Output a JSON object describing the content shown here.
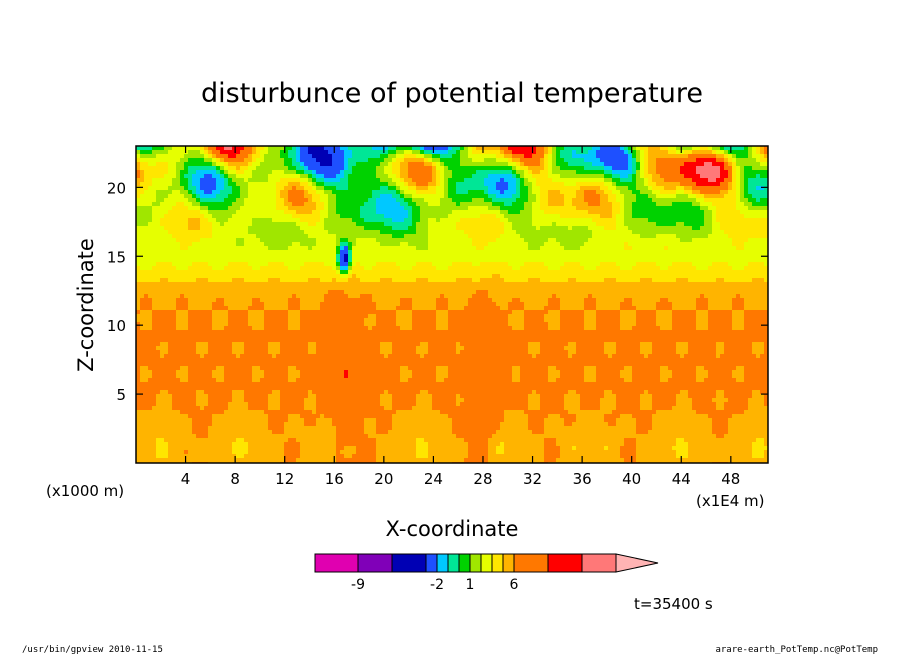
{
  "chart_data": {
    "type": "heatmap",
    "title": "disturbunce of potential temperature",
    "xlabel": "X-coordinate",
    "ylabel": "Z-coordinate",
    "x_ticks": [
      "4",
      "8",
      "12",
      "16",
      "20",
      "24",
      "28",
      "32",
      "36",
      "40",
      "44",
      "48"
    ],
    "y_ticks": [
      "5",
      "10",
      "15",
      "20"
    ],
    "xlim": [
      0,
      51
    ],
    "ylim": [
      0,
      23
    ],
    "x_unit_left": "(x1000 m)",
    "x_unit_right": "(x1E4 m)",
    "colorbar": {
      "levels": [
        -12,
        -9,
        -6,
        -3,
        -2,
        -1,
        0,
        1,
        2,
        3,
        4,
        6,
        8,
        10,
        12
      ],
      "colors": [
        "#e000b0",
        "#8000b8",
        "#0000b4",
        "#1e50ff",
        "#00c8ff",
        "#00e696",
        "#00d200",
        "#a0e600",
        "#e6ff00",
        "#ffe600",
        "#ffb400",
        "#ff7800",
        "#ff0000",
        "#ff7878",
        "#ffb4b4"
      ],
      "tick_labels": [
        {
          "value": -9,
          "label": "-9"
        },
        {
          "value": -2,
          "label": "-2"
        },
        {
          "value": 1,
          "label": "1"
        },
        {
          "value": 6,
          "label": "6"
        }
      ]
    },
    "features": [
      {
        "x": 16.8,
        "description": "narrow updraft plume reaching z≈15, cold cap at top"
      },
      {
        "x": 28.0,
        "description": "narrow plume reaching z≈12"
      }
    ],
    "time_label": "t=35400 s"
  },
  "footer": {
    "left": "/usr/bin/gpview   2010-11-15",
    "right": "arare-earth_PotTemp.nc@PotTemp"
  }
}
